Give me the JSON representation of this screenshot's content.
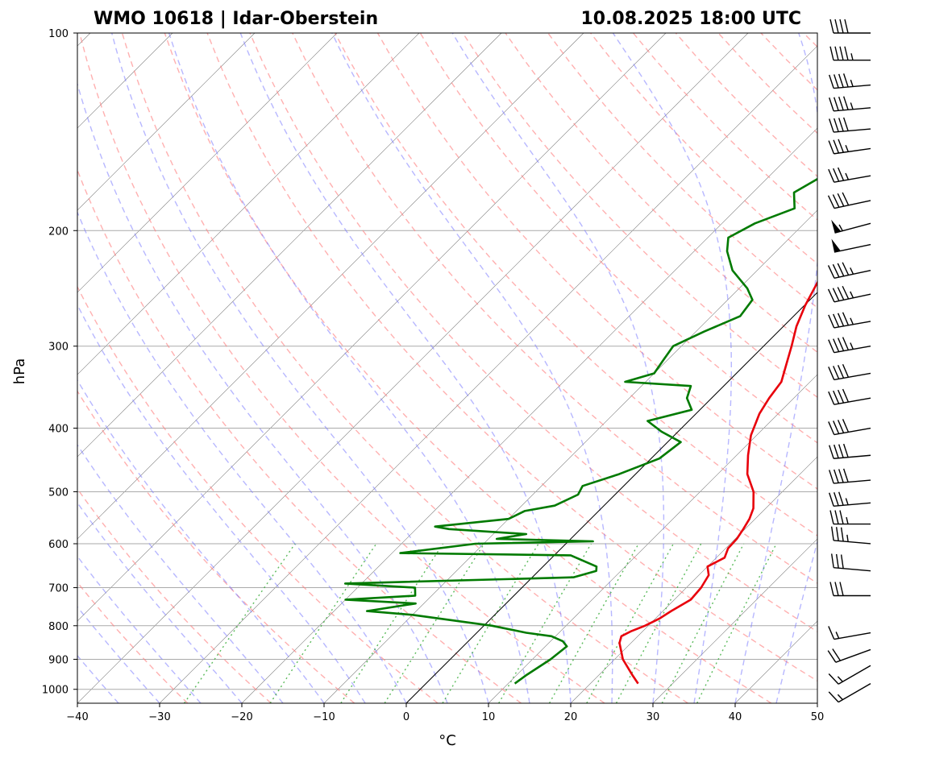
{
  "header": {
    "title_left": "WMO 10618 | Idar-Oberstein",
    "title_right": "10.08.2025 18:00 UTC"
  },
  "chart_data": {
    "type": "line",
    "diagram": "Skew-T log-P",
    "xlabel": "°C",
    "ylabel": "hPa",
    "xlim": [
      -40,
      50
    ],
    "ylim": [
      1050,
      100
    ],
    "y_scale": "log",
    "x_ticks": [
      -40,
      -30,
      -20,
      -10,
      0,
      10,
      20,
      30,
      40,
      50
    ],
    "x_tick_labels": [
      "−40",
      "−30",
      "−20",
      "−10",
      "0",
      "10",
      "20",
      "30",
      "40",
      "50"
    ],
    "y_ticks": [
      1000,
      900,
      800,
      700,
      600,
      500,
      400,
      300,
      200,
      100
    ],
    "y_tick_labels": [
      "1000",
      "900",
      "800",
      "700",
      "600",
      "500",
      "400",
      "300",
      "200",
      "100"
    ],
    "grid": true,
    "colors": {
      "temperature": "#e8000b",
      "dewpoint": "#007a00",
      "dry_adiabats": "#ff7b7b",
      "moist_adiabats": "#7b7bff",
      "mixing_ratio": "#33aa33",
      "isotherms": "#444444"
    },
    "series": [
      {
        "role": "temperature",
        "p": [
          980,
          950,
          900,
          850,
          830,
          815,
          800,
          780,
          760,
          730,
          700,
          670,
          650,
          630,
          610,
          590,
          570,
          550,
          530,
          500,
          470,
          440,
          410,
          380,
          360,
          340,
          320,
          300,
          280,
          260,
          240,
          220,
          205,
          195,
          180,
          170,
          160,
          150,
          140,
          130,
          120,
          110,
          100
        ],
        "t": [
          25.8,
          24.0,
          21.0,
          18.6,
          18.0,
          18.6,
          19.6,
          20.5,
          21.0,
          22.0,
          21.8,
          21.2,
          20.0,
          21.0,
          20.3,
          20.2,
          19.8,
          19.3,
          18.5,
          16.5,
          13.6,
          11.4,
          9.3,
          7.7,
          7.0,
          6.5,
          5.0,
          3.4,
          1.6,
          0.1,
          -1.2,
          -2.6,
          -3.0,
          -1.8,
          -1.5,
          -1.2,
          -0.3,
          1.4,
          2.6,
          2.8,
          3.8,
          5.0,
          8.4
        ]
      },
      {
        "role": "dewpoint",
        "p": [
          980,
          950,
          900,
          860,
          845,
          830,
          820,
          800,
          770,
          760,
          740,
          730,
          720,
          700,
          690,
          675,
          660,
          650,
          625,
          620,
          600,
          595,
          590,
          580,
          570,
          565,
          550,
          535,
          525,
          505,
          490,
          470,
          445,
          420,
          405,
          390,
          375,
          360,
          345,
          340,
          330,
          315,
          300,
          285,
          270,
          255,
          245,
          230,
          215,
          205,
          195,
          185,
          175,
          165,
          155,
          145,
          135,
          125,
          115,
          105,
          100
        ],
        "td": [
          10.8,
          11.2,
          12.2,
          12.6,
          11.5,
          9.5,
          6.0,
          1.0,
          -10.0,
          -16.0,
          -11.0,
          -20.0,
          -12.0,
          -13.0,
          -22.0,
          5.0,
          7.0,
          6.5,
          2.0,
          -19.0,
          -11.0,
          3.0,
          -9.0,
          -6.0,
          -16.0,
          -18.0,
          -10.0,
          -9.0,
          -6.0,
          -4.5,
          -5.0,
          -2.0,
          1.0,
          1.6,
          -2.0,
          -5.0,
          -1.0,
          -3.0,
          -4.0,
          -12.5,
          -10.0,
          -10.5,
          -11.0,
          -9.0,
          -6.5,
          -7.0,
          -9.0,
          -13.0,
          -16.0,
          -17.5,
          -16.0,
          -13.0,
          -15.0,
          -13.5,
          -14.0,
          -13.5,
          -12.5,
          -12.5,
          -10.5,
          -7.0,
          -5.0
        ]
      }
    ],
    "wind_barbs": {
      "units": "kt",
      "p": [
        980,
        920,
        870,
        820,
        720,
        660,
        600,
        560,
        520,
        480,
        440,
        400,
        360,
        330,
        300,
        275,
        250,
        230,
        210,
        195,
        180,
        165,
        150,
        140,
        130,
        120,
        110,
        100
      ],
      "direction": [
        240,
        240,
        250,
        260,
        270,
        275,
        275,
        270,
        265,
        265,
        265,
        260,
        260,
        260,
        260,
        260,
        258,
        258,
        258,
        255,
        258,
        260,
        262,
        265,
        265,
        265,
        270,
        270
      ],
      "speed": [
        15,
        15,
        20,
        15,
        30,
        30,
        35,
        35,
        35,
        40,
        40,
        40,
        40,
        40,
        45,
        45,
        45,
        45,
        50,
        55,
        40,
        35,
        35,
        40,
        45,
        45,
        45,
        40
      ]
    }
  }
}
